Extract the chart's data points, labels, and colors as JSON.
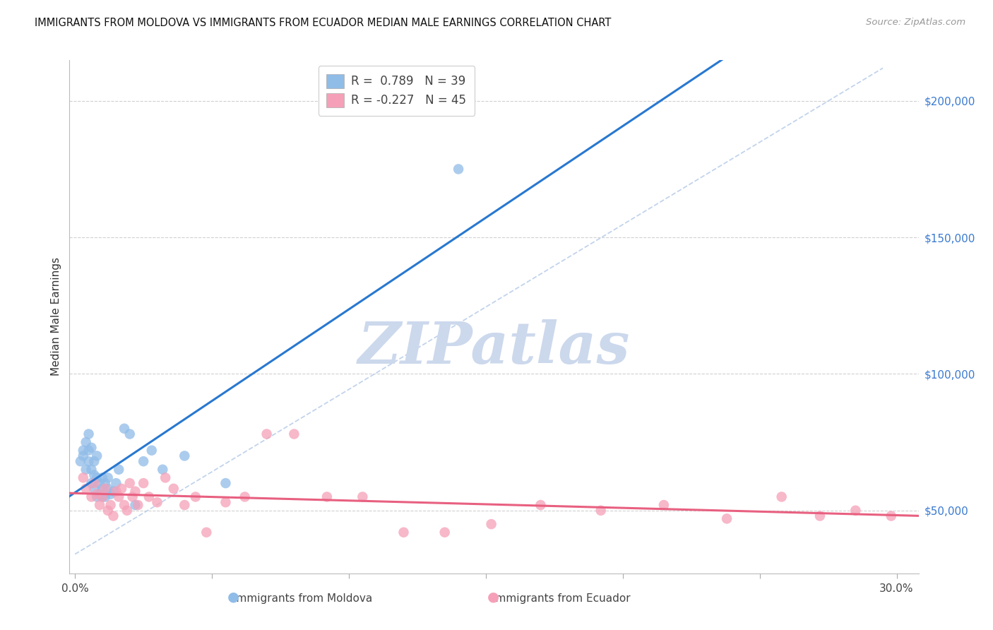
{
  "title": "IMMIGRANTS FROM MOLDOVA VS IMMIGRANTS FROM ECUADOR MEDIAN MALE EARNINGS CORRELATION CHART",
  "source": "Source: ZipAtlas.com",
  "ylabel": "Median Male Earnings",
  "xlim_lo": -0.002,
  "xlim_hi": 0.308,
  "ylim_lo": 27000,
  "ylim_hi": 215000,
  "yticks": [
    50000,
    100000,
    150000,
    200000
  ],
  "xtick_positions": [
    0.0,
    0.05,
    0.1,
    0.15,
    0.2,
    0.25,
    0.3
  ],
  "xtick_labels": [
    "0.0%",
    "",
    "",
    "",
    "",
    "",
    "30.0%"
  ],
  "r_moldova": 0.789,
  "n_moldova": 39,
  "r_ecuador": -0.227,
  "n_ecuador": 45,
  "moldova_color": "#90bce8",
  "ecuador_color": "#f5a0b8",
  "line_moldova_color": "#2878d0",
  "line_ecuador_color": "#e86080",
  "dash_color": "#b8cce8",
  "watermark_color": "#ccd8ec",
  "moldova_x": [
    0.002,
    0.003,
    0.003,
    0.004,
    0.004,
    0.005,
    0.005,
    0.005,
    0.006,
    0.006,
    0.006,
    0.007,
    0.007,
    0.007,
    0.008,
    0.008,
    0.008,
    0.009,
    0.009,
    0.01,
    0.01,
    0.01,
    0.011,
    0.011,
    0.012,
    0.012,
    0.013,
    0.014,
    0.015,
    0.016,
    0.018,
    0.02,
    0.022,
    0.025,
    0.028,
    0.032,
    0.04,
    0.055,
    0.14
  ],
  "moldova_y": [
    68000,
    72000,
    70000,
    75000,
    65000,
    72000,
    68000,
    78000,
    60000,
    65000,
    73000,
    63000,
    58000,
    68000,
    55000,
    62000,
    70000,
    60000,
    56000,
    58000,
    62000,
    55000,
    60000,
    55000,
    62000,
    58000,
    56000,
    57000,
    60000,
    65000,
    80000,
    78000,
    52000,
    68000,
    72000,
    65000,
    70000,
    60000,
    175000
  ],
  "ecuador_x": [
    0.003,
    0.004,
    0.006,
    0.007,
    0.008,
    0.009,
    0.01,
    0.011,
    0.012,
    0.013,
    0.014,
    0.015,
    0.016,
    0.017,
    0.018,
    0.019,
    0.02,
    0.021,
    0.022,
    0.023,
    0.025,
    0.027,
    0.03,
    0.033,
    0.036,
    0.04,
    0.044,
    0.048,
    0.055,
    0.062,
    0.07,
    0.08,
    0.092,
    0.105,
    0.12,
    0.135,
    0.152,
    0.17,
    0.192,
    0.215,
    0.238,
    0.258,
    0.272,
    0.285,
    0.298
  ],
  "ecuador_y": [
    62000,
    58000,
    55000,
    60000,
    56000,
    52000,
    55000,
    58000,
    50000,
    52000,
    48000,
    57000,
    55000,
    58000,
    52000,
    50000,
    60000,
    55000,
    57000,
    52000,
    60000,
    55000,
    53000,
    62000,
    58000,
    52000,
    55000,
    42000,
    53000,
    55000,
    78000,
    78000,
    55000,
    55000,
    42000,
    42000,
    45000,
    52000,
    50000,
    52000,
    47000,
    55000,
    48000,
    50000,
    48000
  ]
}
